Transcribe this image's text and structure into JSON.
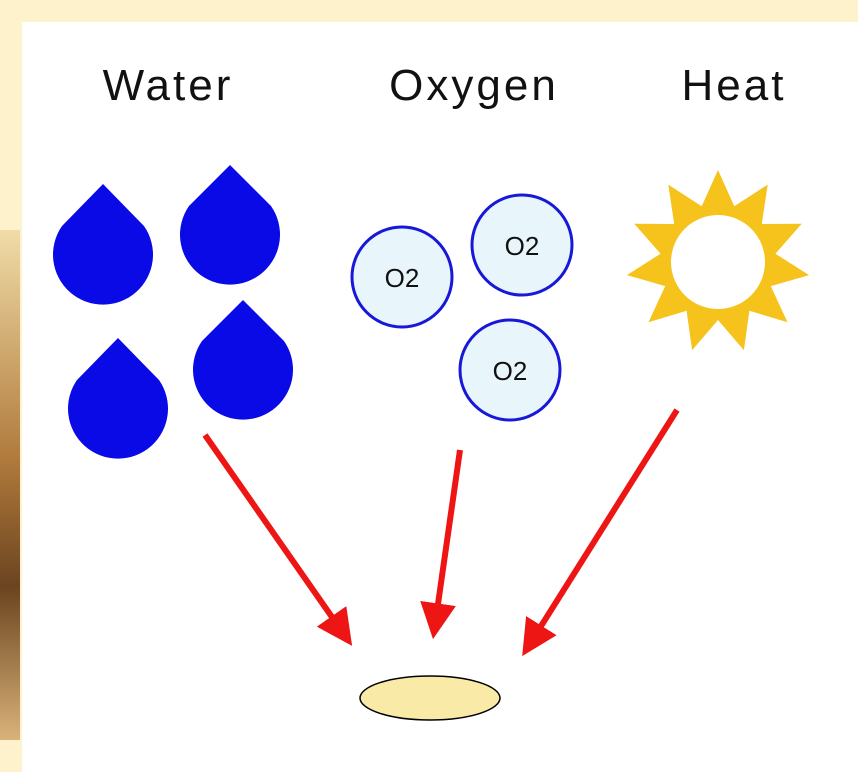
{
  "headings": [
    "Water",
    "Oxygen",
    "Heat"
  ],
  "molecules": [
    "O2",
    "O2",
    "O2"
  ]
}
